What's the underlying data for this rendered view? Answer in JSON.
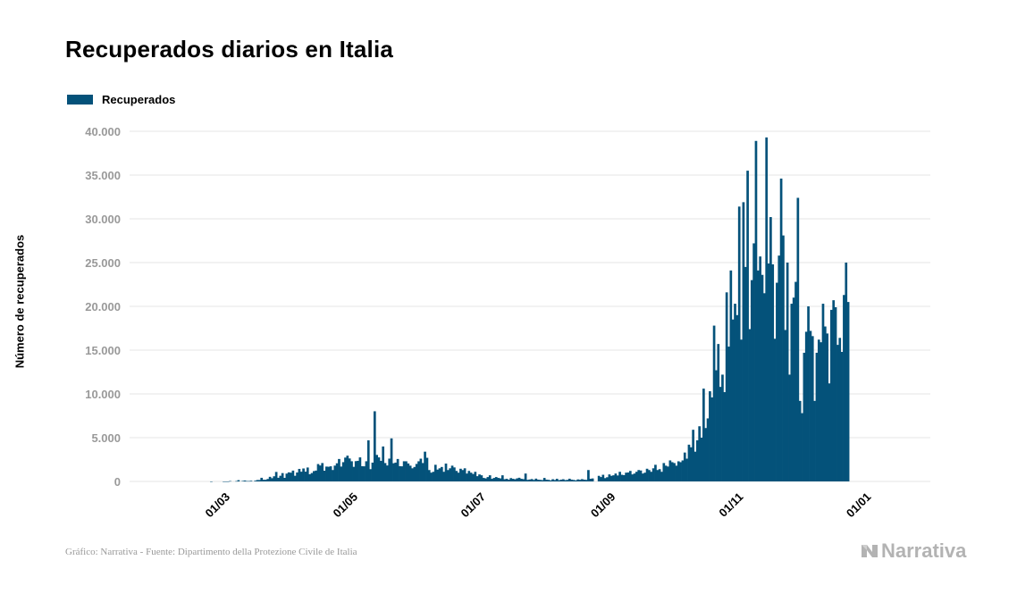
{
  "title": "Recuperados diarios en Italia",
  "legend": {
    "label": "Recuperados",
    "color": "#04527a"
  },
  "footer": {
    "source": "Gráfico: Narrativa - Fuente: Dipartimento della Protezione Civile de Italia"
  },
  "logo": {
    "text": "Narrativa",
    "icon": "narrativa-logo-icon"
  },
  "chart_data": {
    "type": "bar",
    "title": "Recuperados diarios en Italia",
    "xlabel": "",
    "ylabel": "Número de recuperados",
    "ylim": [
      0,
      40000
    ],
    "yticks": [
      0,
      5000,
      10000,
      15000,
      20000,
      25000,
      30000,
      35000,
      40000
    ],
    "ytick_labels": [
      "0",
      "5.000",
      "10.000",
      "15.000",
      "20.000",
      "25.000",
      "30.000",
      "35.000",
      "40.000"
    ],
    "xticks": [
      {
        "date": "2020-03-01",
        "label": "01/03"
      },
      {
        "date": "2020-05-01",
        "label": "01/05"
      },
      {
        "date": "2020-07-01",
        "label": "01/07"
      },
      {
        "date": "2020-09-01",
        "label": "01/09"
      },
      {
        "date": "2020-11-01",
        "label": "01/11"
      },
      {
        "date": "2021-01-01",
        "label": "01/01"
      }
    ],
    "grid": true,
    "legend_position": "top-left",
    "series": [
      {
        "name": "Recuperados",
        "color": "#04527a",
        "start_date": "2020-02-24",
        "values": [
          0,
          1,
          0,
          0,
          0,
          0,
          0,
          1,
          1,
          1,
          41,
          0,
          0,
          37,
          144,
          0,
          55,
          103,
          43,
          41,
          74,
          0,
          82,
          160,
          160,
          414,
          192,
          192,
          280,
          527,
          369,
          589,
          1084,
          415,
          646,
          952,
          408,
          894,
          1036,
          999,
          1238,
          646,
          1022,
          1431,
          1109,
          1480,
          1118,
          1590,
          819,
          962,
          1179,
          1238,
          1985,
          1822,
          2099,
          1224,
          1695,
          1677,
          1727,
          1303,
          1808,
          2072,
          2563,
          1696,
          2200,
          2723,
          2943,
          2622,
          2304,
          1665,
          2317,
          2352,
          2747,
          1740,
          1727,
          2304,
          4693,
          1401,
          2150,
          8014,
          3031,
          2747,
          2352,
          3993,
          2100,
          1822,
          2606,
          4917,
          2075,
          2150,
          2563,
          1740,
          1727,
          2304,
          2300,
          2050,
          1800,
          1500,
          1650,
          2000,
          2300,
          2600,
          2100,
          3400,
          2700,
          1300,
          1000,
          1100,
          1900,
          1350,
          1500,
          1650,
          1100,
          2040,
          1300,
          1500,
          1800,
          1600,
          1200,
          1000,
          1450,
          1300,
          1500,
          900,
          1200,
          1000,
          850,
          1100,
          600,
          800,
          700,
          400,
          350,
          500,
          700,
          300,
          400,
          500,
          400,
          350,
          700,
          250,
          300,
          200,
          380,
          300,
          250,
          350,
          420,
          300,
          260,
          900,
          180,
          220,
          270,
          170,
          320,
          200,
          180,
          150,
          400,
          200,
          180,
          120,
          250,
          160,
          300,
          140,
          200,
          250,
          150,
          180,
          310,
          200,
          170,
          120,
          230,
          190,
          260,
          200,
          180,
          1300,
          300,
          340,
          0,
          0,
          640,
          500,
          760,
          380,
          480,
          800,
          640,
          700,
          900,
          680,
          1100,
          760,
          720,
          1000,
          1020,
          1200,
          800,
          900,
          1100,
          1300,
          1250,
          900,
          1000,
          1450,
          1300,
          1100,
          1500,
          1900,
          1300,
          1400,
          1100,
          2100,
          1800,
          1700,
          2400,
          2200,
          2100,
          1800,
          2300,
          2200,
          2400,
          3300,
          2600,
          4200,
          3900,
          5900,
          3400,
          4700,
          6300,
          5000,
          10600,
          6100,
          7200,
          10300,
          9600,
          17800,
          12700,
          15700,
          10800,
          12200,
          10200,
          21600,
          15400,
          24100,
          18500,
          20300,
          19000,
          31400,
          16200,
          31900,
          24500,
          35500,
          17400,
          23000,
          27200,
          38900,
          24100,
          25700,
          23600,
          21500,
          39300,
          24900,
          30200,
          24800,
          16300,
          22700,
          25800,
          34600,
          28100,
          17300,
          25000,
          12200,
          20300,
          21000,
          22800,
          32400,
          9200,
          7800,
          14700,
          17100,
          20000,
          17200,
          16600,
          9200,
          14700,
          16200,
          15900,
          20300,
          17700,
          16900,
          11200,
          19600,
          20700,
          19900,
          15600,
          16400,
          14800,
          21300,
          25000,
          20500
        ]
      }
    ]
  }
}
